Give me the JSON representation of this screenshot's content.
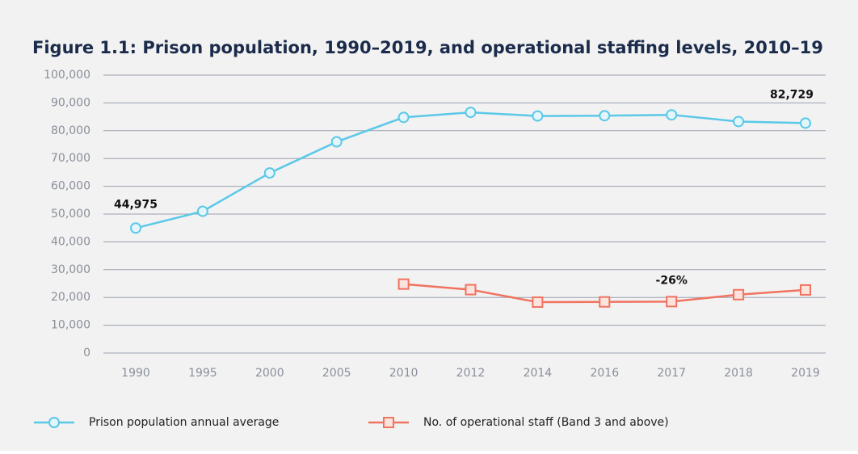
{
  "chart_data": {
    "type": "line",
    "title": "Figure 1.1: Prison population, 1990–2019, and operational staffing levels, 2010–19",
    "categories": [
      "1990",
      "1995",
      "2000",
      "2005",
      "2010",
      "2012",
      "2014",
      "2016",
      "2017",
      "2018",
      "2019"
    ],
    "series": [
      {
        "name": "Prison population annual average",
        "color": "#5bc8e8",
        "marker": "circle",
        "values": [
          44975,
          51000,
          64800,
          76000,
          84800,
          86600,
          85300,
          85400,
          85700,
          83300,
          82729
        ],
        "value_labels": [
          "44,975",
          null,
          null,
          null,
          null,
          null,
          null,
          null,
          null,
          null,
          "82,729"
        ]
      },
      {
        "name": "No. of operational staff (Band 3 and above)",
        "color": "#f07360",
        "marker": "square",
        "values": [
          null,
          null,
          null,
          null,
          24800,
          22800,
          18300,
          18400,
          18500,
          21000,
          22700
        ]
      }
    ],
    "annotations": [
      {
        "text": "-26%",
        "series": 1,
        "index": 8
      }
    ],
    "ylim": [
      0,
      100000
    ],
    "yticks": [
      0,
      {
        "value": 10000,
        "label": "10,000"
      },
      {
        "value": 20000,
        "label": "20,000"
      },
      {
        "value": 30000,
        "label": "30,000"
      },
      {
        "value": 40000,
        "label": "40,000"
      },
      {
        "value": 50000,
        "label": "50,000"
      },
      {
        "value": 60000,
        "label": "60,000"
      },
      {
        "value": 70000,
        "label": "70,000"
      },
      {
        "value": 80000,
        "label": "80,000"
      },
      {
        "value": 90000,
        "label": "90,000"
      },
      {
        "value": 100000,
        "label": "100,000"
      }
    ],
    "grid": true,
    "legend": "bottom"
  }
}
